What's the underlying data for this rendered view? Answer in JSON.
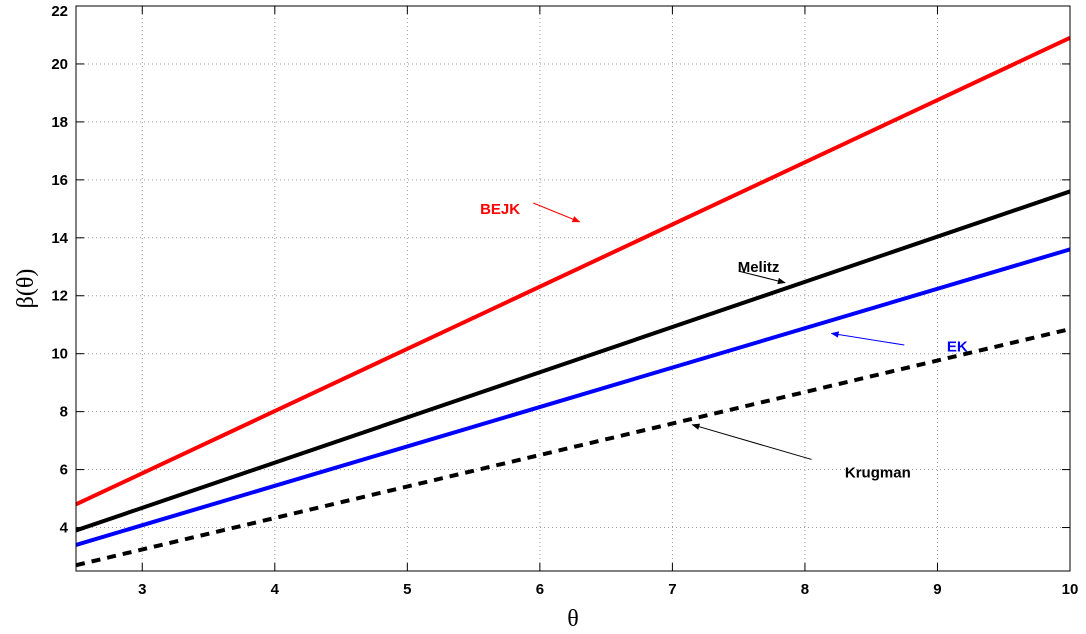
{
  "chart_data": {
    "type": "line",
    "title": "",
    "xlabel": "θ",
    "ylabel": "β(θ)",
    "xlim": [
      2.5,
      10
    ],
    "ylim": [
      2.5,
      22
    ],
    "xticks": [
      3,
      4,
      5,
      6,
      7,
      8,
      9,
      10
    ],
    "yticks": [
      4,
      6,
      8,
      10,
      12,
      14,
      16,
      18,
      20,
      22
    ],
    "grid": true,
    "x": [
      2.5,
      10
    ],
    "series": [
      {
        "name": "BEJK",
        "color": "#ff0000",
        "style": "solid",
        "values": [
          4.8,
          20.9
        ]
      },
      {
        "name": "Melitz",
        "color": "#000000",
        "style": "solid",
        "values": [
          3.9,
          15.6
        ]
      },
      {
        "name": "EK",
        "color": "#0000ff",
        "style": "solid",
        "values": [
          3.4,
          13.6
        ]
      },
      {
        "name": "Krugman",
        "color": "#000000",
        "style": "dashed",
        "values": [
          2.7,
          10.85
        ]
      }
    ],
    "annotations": [
      {
        "text": "BEJK",
        "color": "#ff0000",
        "label_at": [
          5.7,
          15.0
        ],
        "arrow_from": [
          5.95,
          15.2
        ],
        "arrow_to": [
          6.3,
          14.55
        ]
      },
      {
        "text": "Melitz",
        "color": "#000000",
        "label_at": [
          7.65,
          13.0
        ],
        "arrow_from": [
          7.5,
          12.85
        ],
        "arrow_to": [
          7.85,
          12.45
        ]
      },
      {
        "text": "EK",
        "color": "#0000ff",
        "label_at": [
          9.15,
          10.25
        ],
        "arrow_from": [
          8.75,
          10.3
        ],
        "arrow_to": [
          8.2,
          10.7
        ]
      },
      {
        "text": "Krugman",
        "color": "#000000",
        "label_at": [
          8.55,
          5.9
        ],
        "arrow_from": [
          8.05,
          6.35
        ],
        "arrow_to": [
          7.15,
          7.55
        ]
      }
    ]
  }
}
